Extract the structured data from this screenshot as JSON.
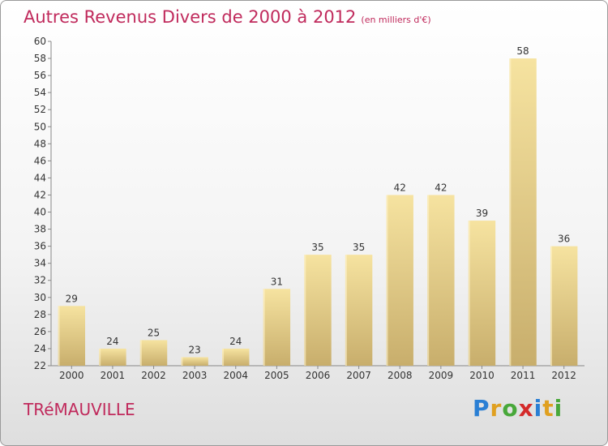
{
  "header": {
    "title": "Autres Revenus Divers de 2000 à 2012",
    "subtitle": "(en milliers d'€)"
  },
  "footer": {
    "city": "TRéMAUVILLE",
    "brand": "Proxiti",
    "brand_letters": [
      {
        "char": "P",
        "color": "#2a7fd4"
      },
      {
        "char": "r",
        "color": "#e0a020"
      },
      {
        "char": "o",
        "color": "#48a83a"
      },
      {
        "char": "x",
        "color": "#d42a2a"
      },
      {
        "char": "i",
        "color": "#2a7fd4"
      },
      {
        "char": "t",
        "color": "#e0a020"
      },
      {
        "char": "i",
        "color": "#48a83a"
      }
    ]
  },
  "colors": {
    "accent": "#c02a5c",
    "bar_light": "#f6e3a0",
    "bar_dark": "#c8ae6c",
    "axis": "#888888"
  },
  "chart_data": {
    "type": "bar",
    "categories": [
      "2000",
      "2001",
      "2002",
      "2003",
      "2004",
      "2005",
      "2006",
      "2007",
      "2008",
      "2009",
      "2010",
      "2011",
      "2012"
    ],
    "values": [
      29,
      24,
      25,
      23,
      24,
      31,
      35,
      35,
      42,
      42,
      39,
      58,
      36
    ],
    "ylim": [
      22,
      60
    ],
    "ytick_step": 2,
    "grid": false
  }
}
